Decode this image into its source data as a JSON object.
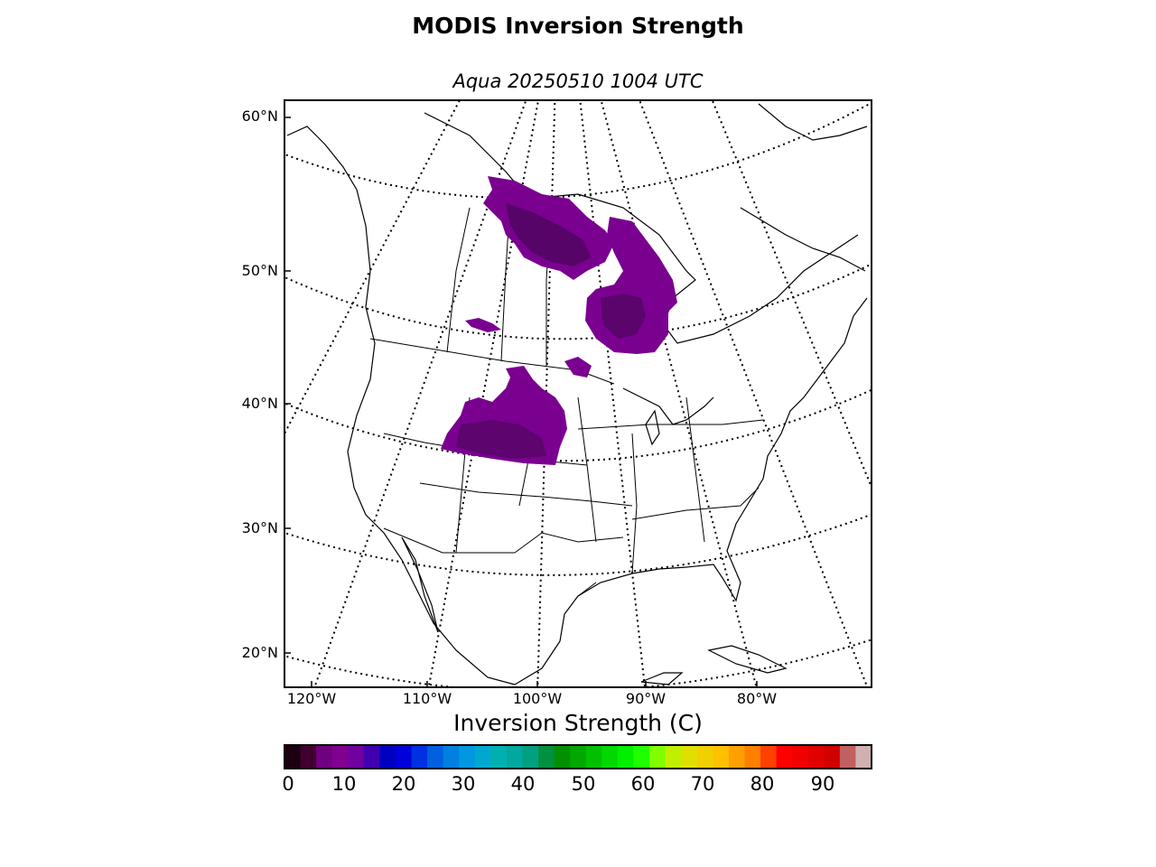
{
  "title": "MODIS Inversion Strength",
  "subtitle": "Aqua 20250510 1004 UTC",
  "lat_labels": [
    "60°N",
    "50°N",
    "40°N",
    "30°N",
    "20°N"
  ],
  "lon_labels": [
    "120°W",
    "110°W",
    "100°W",
    "90°W",
    "80°W"
  ],
  "colorbar": {
    "title": "Inversion Strength (C)",
    "ticks": [
      "0",
      "10",
      "20",
      "30",
      "40",
      "50",
      "60",
      "70",
      "80",
      "90"
    ],
    "colors": [
      "#1a0010",
      "#400030",
      "#700080",
      "#800090",
      "#7000a0",
      "#4000b0",
      "#0000c0",
      "#0000d8",
      "#0030e0",
      "#0060e0",
      "#0080e0",
      "#0098e0",
      "#00a8d0",
      "#00b0b0",
      "#00a8a0",
      "#00a080",
      "#009040",
      "#009000",
      "#00a800",
      "#00c000",
      "#00d800",
      "#00f000",
      "#20ff00",
      "#80ff00",
      "#c0f000",
      "#e0e000",
      "#f0d000",
      "#ffc000",
      "#ffa000",
      "#ff8000",
      "#ff4000",
      "#ff0000",
      "#f00000",
      "#e00000",
      "#d00000",
      "#c06060",
      "#d0b0b0"
    ]
  },
  "inversion_color": "#7a0090",
  "inversion_dark": "#3a0848"
}
